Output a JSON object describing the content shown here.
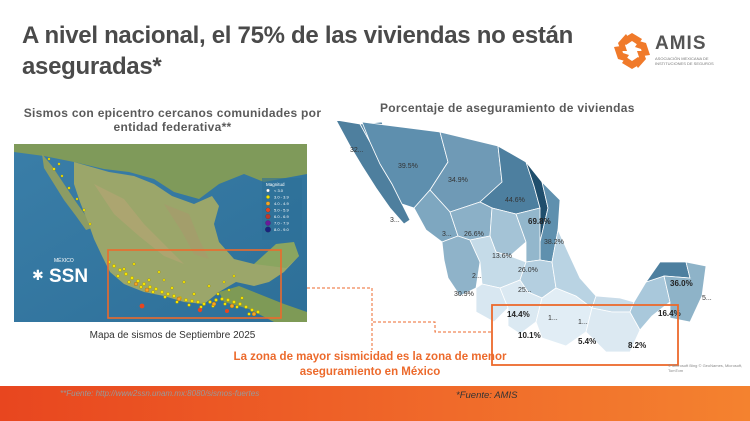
{
  "slide": {
    "title": "A nivel nacional, el 75% de las viviendas no están aseguradas*",
    "logo": {
      "name": "AMIS",
      "subtitle": "ASOCIACIÓN MEXICANA DE INSTITUCIONES DE SEGUROS",
      "colors": [
        "#f07a2a",
        "#e84c1f"
      ]
    }
  },
  "left_panel": {
    "heading": "Sismos con epicentro cercanos comunidades por entidad federativa**",
    "map_caption": "Mapa de sismos de Septiembre 2025",
    "legend": {
      "title": "Magnitud",
      "items": [
        "< 3.0",
        "3.0 - 3.9",
        "4.0 - 4.9",
        "5.0 - 5.9",
        "6.0 - 6.9",
        "7.0 - 7.9",
        "8.0 - 9.0"
      ],
      "colors": [
        "#ffffff",
        "#f5e400",
        "#f5a623",
        "#e8461f",
        "#c0392b",
        "#6a1b9a",
        "#1a237e"
      ]
    },
    "agency_line1": "MÉXICO",
    "agency_line2": "SSN"
  },
  "right_panel": {
    "heading": "Porcentaje de aseguramiento de viviendas",
    "labels": [
      "32...",
      "39.5%",
      "34.9%",
      "44.6%",
      "69.8%",
      "38.2%",
      "3...",
      "3...",
      "26.6%",
      "13.6%",
      "26.0%",
      "2...",
      "30.9%",
      "25...",
      "14.4%",
      "1...",
      "1...",
      "10.1%",
      "5.4%",
      "8.2%",
      "16.4%",
      "36.0%",
      "5..."
    ],
    "attribution": "© Microsoft Bing © GeoNames, Microsoft, TomTom"
  },
  "highlight_text": "La zona de mayor sismicidad es la zona de menor aseguramiento en México",
  "sources": {
    "left_prefix": "**Fuente: ",
    "left_link": "http://www2ssn.unam.mx:8080/sismos-fuertes",
    "right_prefix": "*Fuente: ",
    "right_link": "AMIS"
  },
  "colors": {
    "accent": "#ec6a2c",
    "bar": "#f06a2a",
    "map_dark": "#2c5a78",
    "map_light": "#d9e7f1"
  }
}
